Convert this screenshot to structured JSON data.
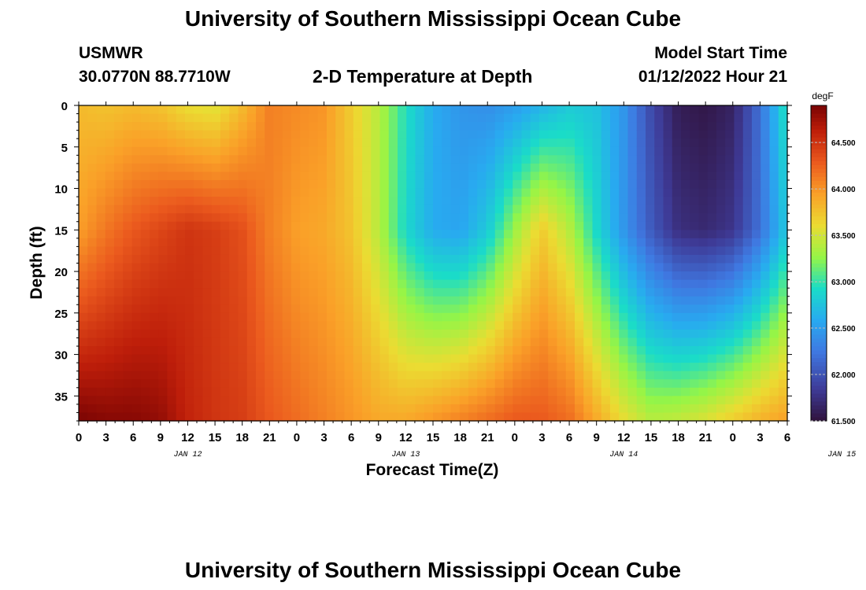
{
  "titles": {
    "top": "University of Southern Mississippi Ocean Cube",
    "bottom": "University of Southern Mississippi Ocean Cube"
  },
  "station": {
    "name": "USMWR",
    "coords": "30.0770N  88.7710W"
  },
  "subtitle": "2-D Temperature at Depth",
  "model": {
    "label": "Model Start Time",
    "time": "01/12/2022 Hour 21"
  },
  "chart_data": {
    "type": "heatmap",
    "xlabel": "Forecast Time(Z)",
    "ylabel": "Depth (ft)",
    "x_tick_labels": [
      "0",
      "3",
      "6",
      "9",
      "12",
      "15",
      "18",
      "21",
      "0",
      "3",
      "6",
      "9",
      "12",
      "15",
      "18",
      "21",
      "0",
      "3",
      "6",
      "9",
      "12",
      "15",
      "18",
      "21",
      "0",
      "3",
      "6"
    ],
    "day_labels": [
      {
        "label": "JAN 12",
        "hour": 12
      },
      {
        "label": "JAN 13",
        "hour": 36
      },
      {
        "label": "JAN 14",
        "hour": 60
      },
      {
        "label": "JAN 15",
        "hour": 84
      }
    ],
    "xlim": [
      0,
      78
    ],
    "ylim": [
      0,
      38
    ],
    "y_ticks": [
      0,
      5,
      10,
      15,
      20,
      25,
      30,
      35
    ],
    "colorbar": {
      "unit": "degF",
      "range": [
        61.5,
        64.9
      ],
      "tick_labels": [
        "64.500",
        "64.000",
        "63.500",
        "63.000",
        "62.500",
        "62.000",
        "61.500"
      ],
      "tick_values": [
        64.5,
        64.0,
        63.5,
        63.0,
        62.5,
        62.0,
        61.5
      ]
    },
    "grid": {
      "nx": 80,
      "ny": 38
    },
    "surface_profile": {
      "x": [
        0,
        3,
        6,
        9,
        12,
        15,
        18,
        21,
        24,
        27,
        30,
        33,
        36,
        39,
        42,
        45,
        48,
        51,
        54,
        57,
        60,
        63,
        66,
        69,
        72,
        75,
        78
      ],
      "values": [
        63.8,
        63.75,
        63.8,
        63.75,
        63.6,
        63.55,
        63.8,
        64.1,
        64.05,
        64.0,
        63.7,
        63.4,
        62.95,
        62.6,
        62.45,
        62.4,
        62.5,
        62.65,
        62.8,
        62.75,
        62.45,
        61.95,
        61.6,
        61.55,
        61.65,
        62.2,
        63.0
      ]
    },
    "mid_profile_15ft": {
      "x": [
        0,
        3,
        6,
        9,
        12,
        15,
        18,
        21,
        24,
        27,
        30,
        33,
        36,
        39,
        42,
        45,
        48,
        51,
        54,
        57,
        60,
        63,
        66,
        69,
        72,
        75,
        78
      ],
      "values": [
        63.95,
        64.15,
        64.3,
        64.4,
        64.5,
        64.45,
        64.35,
        64.1,
        63.95,
        63.9,
        63.75,
        63.4,
        62.9,
        62.6,
        62.55,
        62.8,
        63.3,
        63.7,
        63.4,
        62.9,
        62.45,
        62.05,
        61.75,
        61.7,
        61.8,
        62.2,
        62.8
      ]
    },
    "bottom_profile_38ft": {
      "x": [
        0,
        3,
        6,
        9,
        12,
        15,
        18,
        21,
        24,
        27,
        30,
        33,
        36,
        39,
        42,
        45,
        48,
        51,
        54,
        57,
        60,
        63,
        66,
        69,
        72,
        75,
        78
      ],
      "values": [
        64.9,
        64.85,
        64.85,
        64.8,
        64.6,
        64.5,
        64.45,
        64.3,
        64.2,
        64.1,
        64.0,
        63.9,
        63.9,
        64.0,
        64.1,
        64.2,
        64.3,
        64.3,
        64.2,
        63.9,
        63.6,
        63.4,
        63.45,
        63.55,
        63.7,
        63.85,
        63.95
      ]
    }
  }
}
